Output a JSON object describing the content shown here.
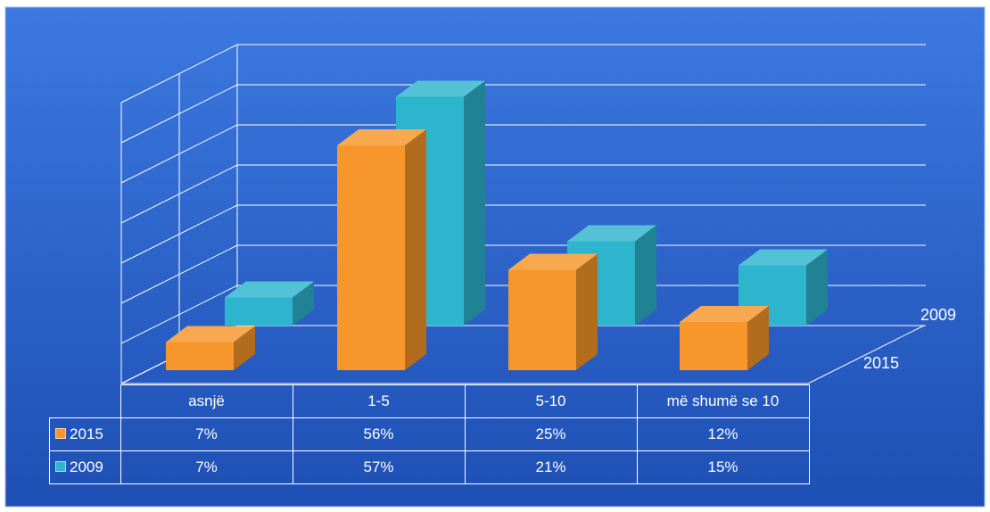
{
  "chart_data": {
    "type": "bar",
    "categories": [
      "asnjë",
      "1-5",
      "5-10",
      "më shumë se 10"
    ],
    "series": [
      {
        "name": "2015",
        "values": [
          7,
          56,
          25,
          12
        ],
        "labels": [
          "7%",
          "56%",
          "25%",
          "12%"
        ],
        "color": "#F7962A"
      },
      {
        "name": "2009",
        "values": [
          7,
          57,
          21,
          15
        ],
        "labels": [
          "7%",
          "57%",
          "21%",
          "15%"
        ],
        "color": "#2DB5CE"
      }
    ],
    "ylim": [
      0,
      70
    ],
    "grid": true,
    "legend": "data table below chart"
  },
  "colors": {
    "background": "#2A5FCC",
    "grid": "#FFFFFF"
  }
}
